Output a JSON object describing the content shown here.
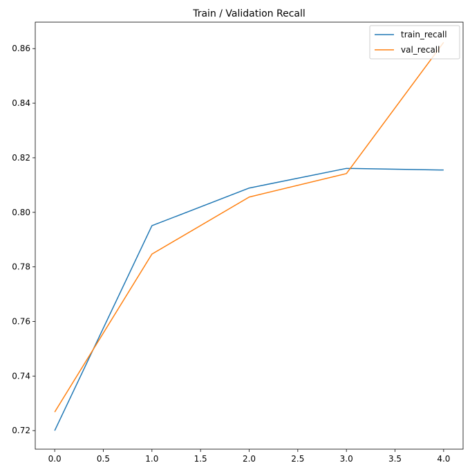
{
  "chart_data": {
    "type": "line",
    "title": "Train / Validation Recall",
    "xlabel": "",
    "ylabel": "",
    "x": [
      0,
      1,
      2,
      3,
      4
    ],
    "xlim": [
      -0.2,
      4.2
    ],
    "ylim": [
      0.7132,
      0.8697
    ],
    "xticks": [
      0.0,
      0.5,
      1.0,
      1.5,
      2.0,
      2.5,
      3.0,
      3.5,
      4.0
    ],
    "xtick_labels": [
      "0.0",
      "0.5",
      "1.0",
      "1.5",
      "2.0",
      "2.5",
      "3.0",
      "3.5",
      "4.0"
    ],
    "yticks": [
      0.72,
      0.74,
      0.76,
      0.78,
      0.8,
      0.82,
      0.84,
      0.86
    ],
    "ytick_labels": [
      "0.72",
      "0.74",
      "0.76",
      "0.78",
      "0.80",
      "0.82",
      "0.84",
      "0.86"
    ],
    "grid": false,
    "legend_position": "top-right",
    "series": [
      {
        "name": "train_recall",
        "color": "#1f77b4",
        "values": [
          0.72,
          0.7951,
          0.8089,
          0.8161,
          0.8155
        ]
      },
      {
        "name": "val_recall",
        "color": "#ff7f0e",
        "values": [
          0.7268,
          0.7847,
          0.8056,
          0.8142,
          0.8623
        ]
      }
    ]
  }
}
